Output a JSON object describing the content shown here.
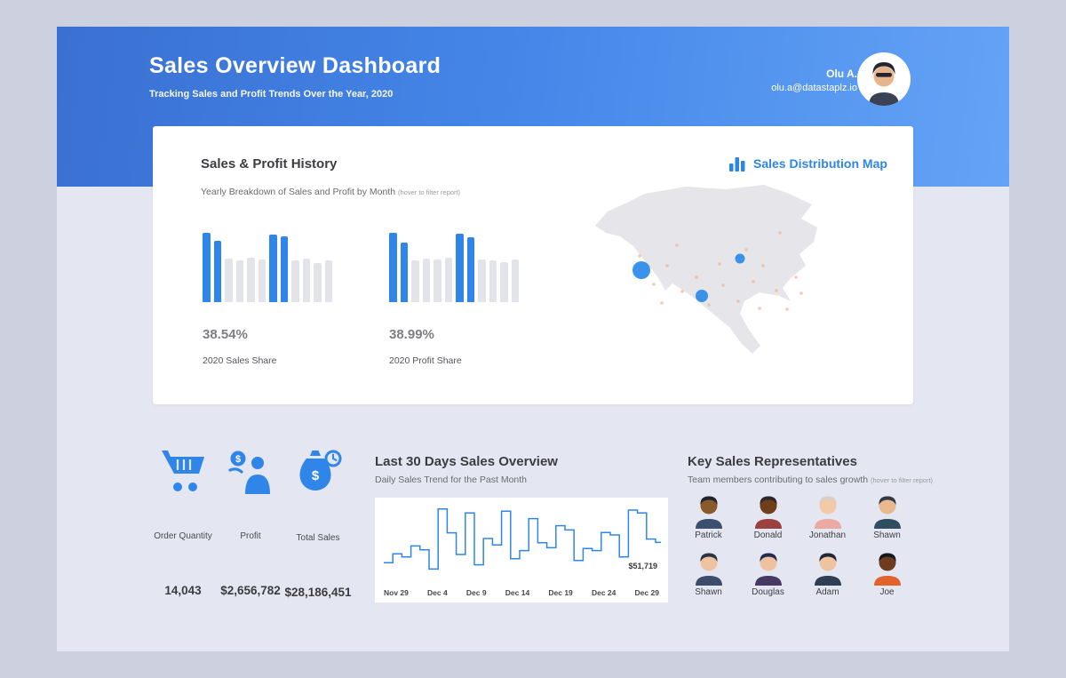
{
  "header": {
    "title": "Sales Overview Dashboard",
    "subtitle": "Tracking Sales and Profit Trends Over the Year, 2020",
    "user": {
      "name": "Olu A.",
      "email": "olu.a@datastaplz.io"
    }
  },
  "card": {
    "title": "Sales & Profit History",
    "subtitle": "Yearly Breakdown of Sales and Profit by Month",
    "subtitle_note": "(hover to filter report)",
    "map_title": "Sales Distribution Map"
  },
  "kpis": [
    {
      "label": "Order Quantity",
      "value": "14,043",
      "icon": "cart-icon"
    },
    {
      "label": "Profit",
      "value": "$2,656,782",
      "icon": "profit-person-icon"
    },
    {
      "label": "Total Sales",
      "value": "$28,186,451",
      "icon": "money-bag-clock-icon"
    }
  ],
  "last30": {
    "title": "Last 30 Days Sales Overview",
    "subtitle": "Daily Sales Trend for the Past Month"
  },
  "reps": {
    "title": "Key Sales Representatives",
    "subtitle": "Team members contributing to sales growth",
    "subtitle_note": "(hover to filter report)",
    "members": [
      {
        "name": "Patrick",
        "skin": "#8a5a2b",
        "hair": "#20242e",
        "shirt": "#3c4f6e"
      },
      {
        "name": "Donald",
        "skin": "#6f3f1c",
        "hair": "#30262c",
        "shirt": "#9c4040"
      },
      {
        "name": "Jonathan",
        "skin": "#f3c9a8",
        "hair": "#d9cfc3",
        "shirt": "#eba9a4"
      },
      {
        "name": "Shawn",
        "skin": "#eab88f",
        "hair": "#2e3a45",
        "shirt": "#2f4d5e"
      },
      {
        "name": "Shawn",
        "skin": "#f0c3a0",
        "hair": "#2b3442",
        "shirt": "#3d4c6b"
      },
      {
        "name": "Douglas",
        "skin": "#efc1a1",
        "hair": "#232c4e",
        "shirt": "#463a63"
      },
      {
        "name": "Adam",
        "skin": "#f0c3a0",
        "hair": "#1e2738",
        "shirt": "#2e3e55"
      },
      {
        "name": "Joe",
        "skin": "#6e3d1f",
        "hair": "#14181f",
        "shirt": "#e2622b"
      }
    ]
  },
  "colors": {
    "accent": "#2f86e8",
    "bar_gray": "#e3e4e9",
    "map_fill": "#e5e5ea",
    "map_marker": "#2f8ce8",
    "map_dot": "#f0b79c",
    "title_blue": "#2e86de",
    "hero_gradient_start": "#3a70d2",
    "hero_gradient_end": "#64a3f6",
    "panel_bg": "#e4e6f2"
  },
  "chart_data": [
    {
      "type": "bar",
      "title": "2020 Sales Share",
      "value_label": "38.54%",
      "values": [
        100,
        88,
        63,
        60,
        64,
        61,
        98,
        95,
        60,
        63,
        57,
        60
      ],
      "highlighted_indices": [
        0,
        1,
        6,
        7
      ],
      "ylim": [
        0,
        100
      ]
    },
    {
      "type": "bar",
      "title": "2020 Profit Share",
      "value_label": "38.99%",
      "values": [
        100,
        86,
        60,
        63,
        61,
        64,
        99,
        93,
        62,
        60,
        58,
        61
      ],
      "highlighted_indices": [
        0,
        1,
        6,
        7
      ],
      "ylim": [
        0,
        100
      ]
    },
    {
      "type": "line",
      "subtype": "step",
      "title": "Last 30 Days Sales Overview",
      "x_ticks": [
        "Nov 29",
        "Dec 4",
        "Dec 9",
        "Dec 14",
        "Dec 19",
        "Dec 24",
        "Dec 29"
      ],
      "values": [
        18500,
        31000,
        26500,
        42000,
        36500,
        9500,
        94000,
        60500,
        30000,
        88500,
        15500,
        52500,
        43500,
        91000,
        24000,
        35500,
        80500,
        46500,
        39500,
        70500,
        64500,
        21500,
        38500,
        35500,
        61000,
        57500,
        26500,
        92500,
        88500,
        51719,
        47000
      ],
      "y_min": 0,
      "y_max": 100000,
      "annotation": {
        "text": "$51,719",
        "index": 29
      }
    },
    {
      "type": "map",
      "title": "Sales Distribution Map",
      "markers": [
        {
          "x": 72,
          "y": 104,
          "r": 10
        },
        {
          "x": 140,
          "y": 133,
          "r": 7
        },
        {
          "x": 183,
          "y": 91,
          "r": 5.5
        }
      ],
      "background_dots": [
        {
          "x": 70,
          "y": 88
        },
        {
          "x": 86,
          "y": 120
        },
        {
          "x": 101,
          "y": 99
        },
        {
          "x": 118,
          "y": 128
        },
        {
          "x": 134,
          "y": 112
        },
        {
          "x": 148,
          "y": 143
        },
        {
          "x": 164,
          "y": 121
        },
        {
          "x": 181,
          "y": 139
        },
        {
          "x": 198,
          "y": 117
        },
        {
          "x": 95,
          "y": 141
        },
        {
          "x": 112,
          "y": 76
        },
        {
          "x": 160,
          "y": 97
        },
        {
          "x": 205,
          "y": 147
        },
        {
          "x": 224,
          "y": 127
        },
        {
          "x": 236,
          "y": 148
        },
        {
          "x": 209,
          "y": 99
        },
        {
          "x": 190,
          "y": 81
        },
        {
          "x": 228,
          "y": 62
        },
        {
          "x": 246,
          "y": 112
        },
        {
          "x": 252,
          "y": 130
        }
      ]
    }
  ]
}
